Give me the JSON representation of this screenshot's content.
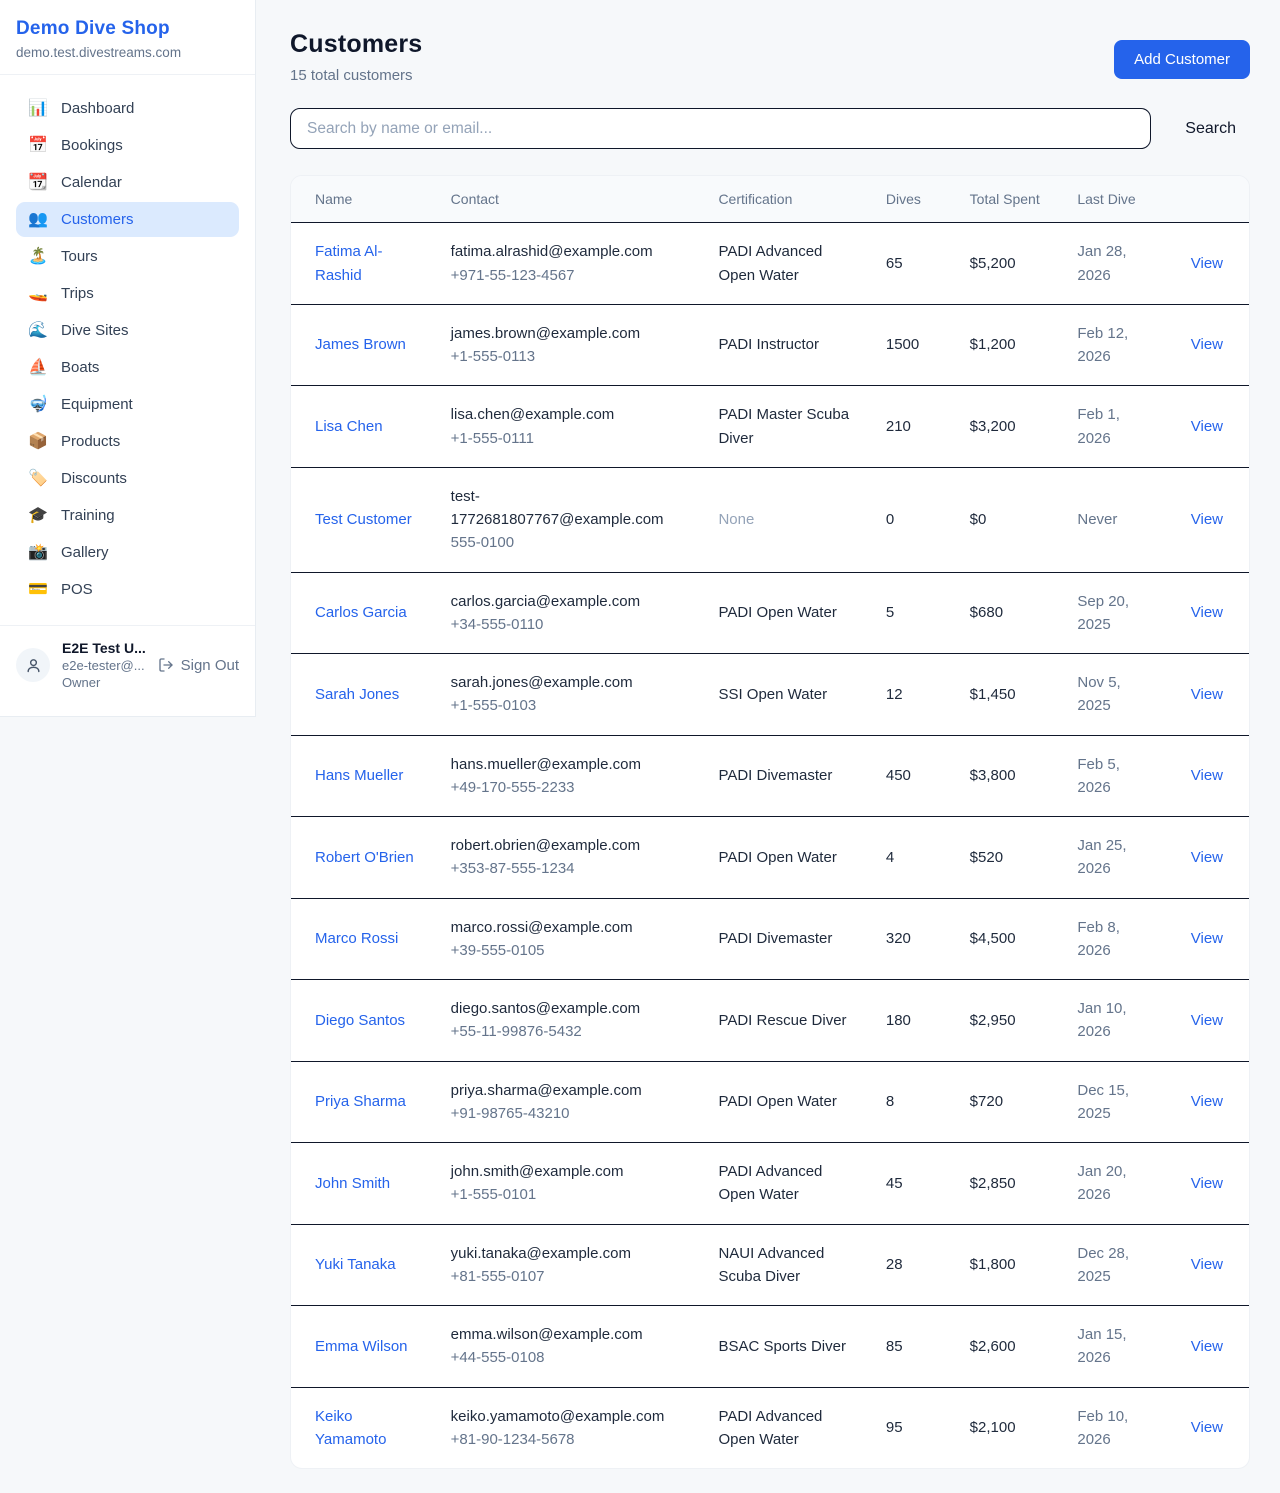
{
  "sidebar": {
    "shop_name": "Demo Dive Shop",
    "shop_domain": "demo.test.divestreams.com",
    "items": [
      {
        "id": "dashboard",
        "label": "Dashboard",
        "icon": "📊",
        "icon_name": "bar-chart-icon",
        "active": false
      },
      {
        "id": "bookings",
        "label": "Bookings",
        "icon": "📅",
        "icon_name": "calendar-icon",
        "active": false
      },
      {
        "id": "calendar",
        "label": "Calendar",
        "icon": "📆",
        "icon_name": "tear-off-calendar-icon",
        "active": false
      },
      {
        "id": "customers",
        "label": "Customers",
        "icon": "👥",
        "icon_name": "people-icon",
        "active": true
      },
      {
        "id": "tours",
        "label": "Tours",
        "icon": "🏝️",
        "icon_name": "island-icon",
        "active": false
      },
      {
        "id": "trips",
        "label": "Trips",
        "icon": "🚤",
        "icon_name": "speedboat-icon",
        "active": false
      },
      {
        "id": "dive-sites",
        "label": "Dive Sites",
        "icon": "🌊",
        "icon_name": "wave-icon",
        "active": false
      },
      {
        "id": "boats",
        "label": "Boats",
        "icon": "⛵",
        "icon_name": "sailboat-icon",
        "active": false
      },
      {
        "id": "equipment",
        "label": "Equipment",
        "icon": "🤿",
        "icon_name": "diving-mask-icon",
        "active": false
      },
      {
        "id": "products",
        "label": "Products",
        "icon": "📦",
        "icon_name": "package-icon",
        "active": false
      },
      {
        "id": "discounts",
        "label": "Discounts",
        "icon": "🏷️",
        "icon_name": "tag-icon",
        "active": false
      },
      {
        "id": "training",
        "label": "Training",
        "icon": "🎓",
        "icon_name": "graduation-cap-icon",
        "active": false
      },
      {
        "id": "gallery",
        "label": "Gallery",
        "icon": "📸",
        "icon_name": "camera-icon",
        "active": false
      },
      {
        "id": "pos",
        "label": "POS",
        "icon": "💳",
        "icon_name": "credit-card-icon",
        "active": false
      }
    ],
    "user": {
      "name": "E2E Test U...",
      "email": "e2e-tester@...",
      "role": "Owner",
      "sign_out_label": "Sign Out"
    }
  },
  "header": {
    "title": "Customers",
    "subtitle": "15 total customers",
    "add_button_label": "Add Customer"
  },
  "search": {
    "placeholder": "Search by name or email...",
    "button_label": "Search"
  },
  "table": {
    "columns": [
      "Name",
      "Contact",
      "Certification",
      "Dives",
      "Total Spent",
      "Last Dive",
      ""
    ],
    "rows": [
      {
        "name": "Fatima Al-Rashid",
        "email": "fatima.alrashid@example.com",
        "phone": "+971-55-123-4567",
        "certification": "PADI Advanced Open Water",
        "dives": "65",
        "total_spent": "$5,200",
        "last_dive": "Jan 28, 2026",
        "action": "View"
      },
      {
        "name": "James Brown",
        "email": "james.brown@example.com",
        "phone": "+1-555-0113",
        "certification": "PADI Instructor",
        "dives": "1500",
        "total_spent": "$1,200",
        "last_dive": "Feb 12, 2026",
        "action": "View"
      },
      {
        "name": "Lisa Chen",
        "email": "lisa.chen@example.com",
        "phone": "+1-555-0111",
        "certification": "PADI Master Scuba Diver",
        "dives": "210",
        "total_spent": "$3,200",
        "last_dive": "Feb 1, 2026",
        "action": "View"
      },
      {
        "name": "Test Customer",
        "email": "test-1772681807767@example.com",
        "phone": "555-0100",
        "certification": "None",
        "dives": "0",
        "total_spent": "$0",
        "last_dive": "Never",
        "action": "View"
      },
      {
        "name": "Carlos Garcia",
        "email": "carlos.garcia@example.com",
        "phone": "+34-555-0110",
        "certification": "PADI Open Water",
        "dives": "5",
        "total_spent": "$680",
        "last_dive": "Sep 20, 2025",
        "action": "View"
      },
      {
        "name": "Sarah Jones",
        "email": "sarah.jones@example.com",
        "phone": "+1-555-0103",
        "certification": "SSI Open Water",
        "dives": "12",
        "total_spent": "$1,450",
        "last_dive": "Nov 5, 2025",
        "action": "View"
      },
      {
        "name": "Hans Mueller",
        "email": "hans.mueller@example.com",
        "phone": "+49-170-555-2233",
        "certification": "PADI Divemaster",
        "dives": "450",
        "total_spent": "$3,800",
        "last_dive": "Feb 5, 2026",
        "action": "View"
      },
      {
        "name": "Robert O'Brien",
        "email": "robert.obrien@example.com",
        "phone": "+353-87-555-1234",
        "certification": "PADI Open Water",
        "dives": "4",
        "total_spent": "$520",
        "last_dive": "Jan 25, 2026",
        "action": "View"
      },
      {
        "name": "Marco Rossi",
        "email": "marco.rossi@example.com",
        "phone": "+39-555-0105",
        "certification": "PADI Divemaster",
        "dives": "320",
        "total_spent": "$4,500",
        "last_dive": "Feb 8, 2026",
        "action": "View"
      },
      {
        "name": "Diego Santos",
        "email": "diego.santos@example.com",
        "phone": "+55-11-99876-5432",
        "certification": "PADI Rescue Diver",
        "dives": "180",
        "total_spent": "$2,950",
        "last_dive": "Jan 10, 2026",
        "action": "View"
      },
      {
        "name": "Priya Sharma",
        "email": "priya.sharma@example.com",
        "phone": "+91-98765-43210",
        "certification": "PADI Open Water",
        "dives": "8",
        "total_spent": "$720",
        "last_dive": "Dec 15, 2025",
        "action": "View"
      },
      {
        "name": "John Smith",
        "email": "john.smith@example.com",
        "phone": "+1-555-0101",
        "certification": "PADI Advanced Open Water",
        "dives": "45",
        "total_spent": "$2,850",
        "last_dive": "Jan 20, 2026",
        "action": "View"
      },
      {
        "name": "Yuki Tanaka",
        "email": "yuki.tanaka@example.com",
        "phone": "+81-555-0107",
        "certification": "NAUI Advanced Scuba Diver",
        "dives": "28",
        "total_spent": "$1,800",
        "last_dive": "Dec 28, 2025",
        "action": "View"
      },
      {
        "name": "Emma Wilson",
        "email": "emma.wilson@example.com",
        "phone": "+44-555-0108",
        "certification": "BSAC Sports Diver",
        "dives": "85",
        "total_spent": "$2,600",
        "last_dive": "Jan 15, 2026",
        "action": "View"
      },
      {
        "name": "Keiko Yamamoto",
        "email": "keiko.yamamoto@example.com",
        "phone": "+81-90-1234-5678",
        "certification": "PADI Advanced Open Water",
        "dives": "95",
        "total_spent": "$2,100",
        "last_dive": "Feb 10, 2026",
        "action": "View"
      }
    ]
  },
  "colors": {
    "accent_blue": "#2563eb",
    "active_item_bg": "#dbeafe",
    "page_bg": "#f6f8fa",
    "table_header_bg": "#f8fafc",
    "row_border": "#0f172a",
    "muted_text": "#64748b"
  }
}
